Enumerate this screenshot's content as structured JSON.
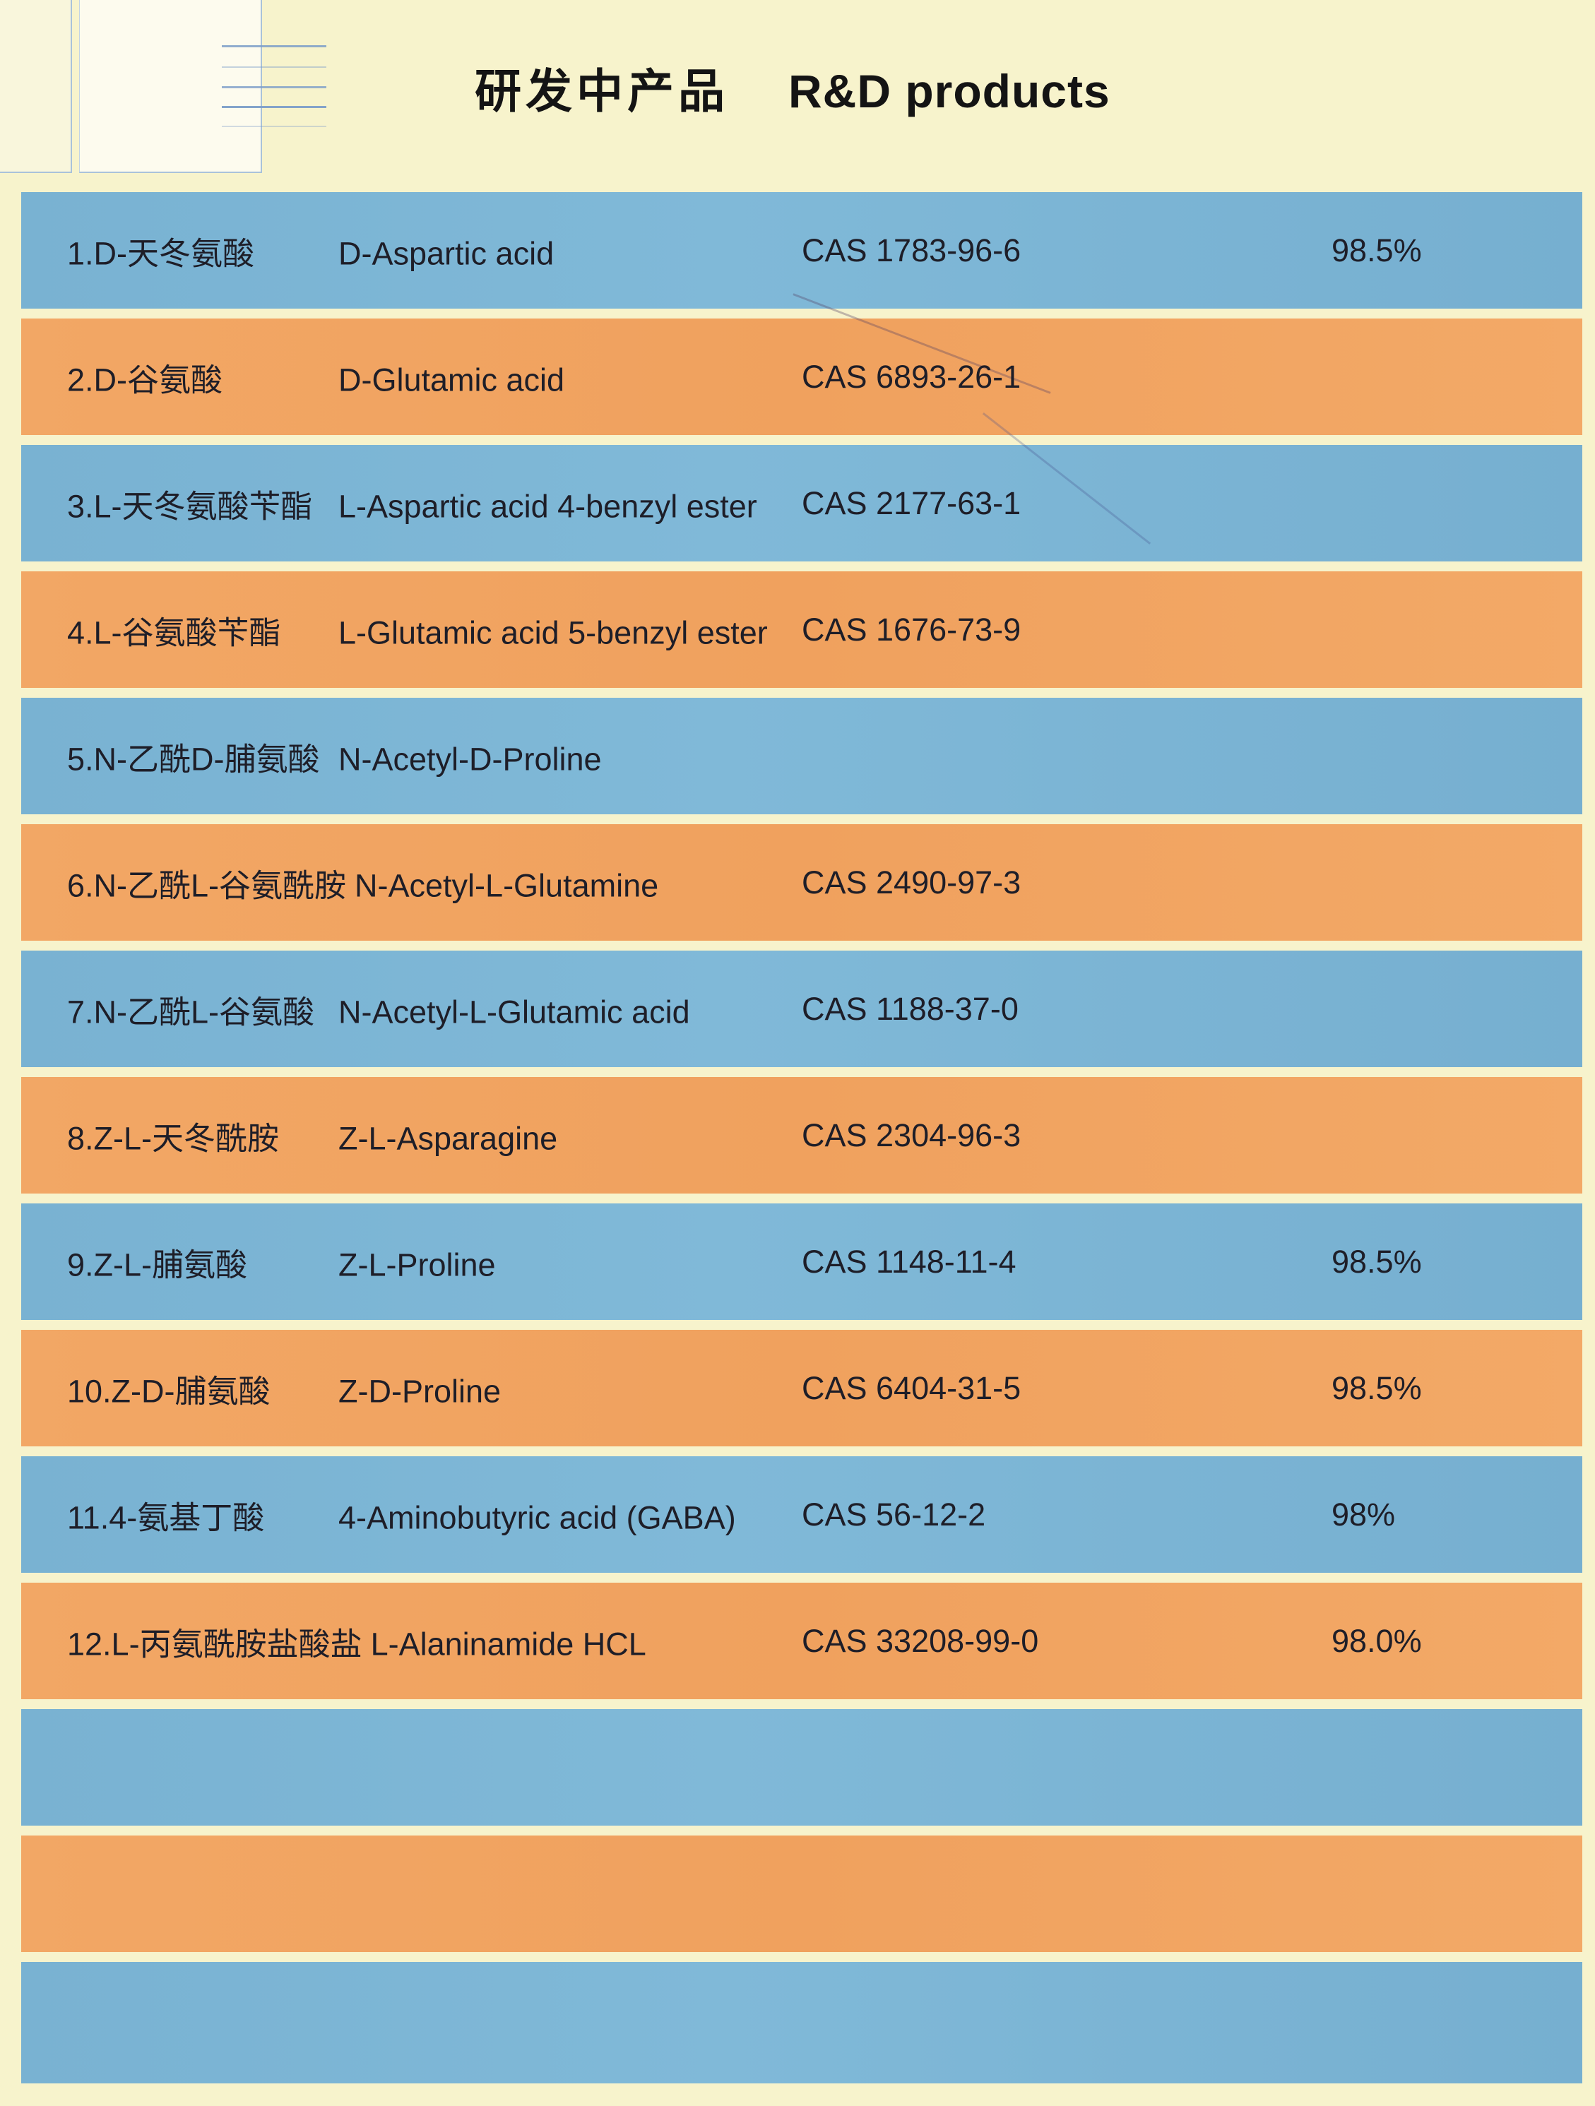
{
  "document": {
    "title_cn": "研发中产品",
    "title_en": "R&D products"
  },
  "products": [
    {
      "name_cn": "1.D-天冬氨酸",
      "name_en": "D-Aspartic acid",
      "cas": "CAS 1783-96-6",
      "purity": "98.5%"
    },
    {
      "name_cn": "2.D-谷氨酸",
      "name_en": "D-Glutamic acid",
      "cas": "CAS 6893-26-1"
    },
    {
      "name_cn": "3.L-天冬氨酸苄酯",
      "name_en": "L-Aspartic acid 4-benzyl ester",
      "cas": "CAS 2177-63-1"
    },
    {
      "name_cn": "4.L-谷氨酸苄酯",
      "name_en": "L-Glutamic acid 5-benzyl ester",
      "cas": "CAS 1676-73-9"
    },
    {
      "name_cn": "5.N-乙酰D-脯氨酸",
      "name_en": "N-Acetyl-D-Proline"
    },
    {
      "name_cn": "6.N-乙酰L-谷氨酰胺",
      "name_en": "N-Acetyl-L-Glutamine",
      "cas": "CAS 2490-97-3"
    },
    {
      "name_cn": "7.N-乙酰L-谷氨酸",
      "name_en": "N-Acetyl-L-Glutamic acid",
      "cas": "CAS 1188-37-0"
    },
    {
      "name_cn": "8.Z-L-天冬酰胺",
      "name_en": "Z-L-Asparagine",
      "cas": "CAS 2304-96-3"
    },
    {
      "name_cn": "9.Z-L-脯氨酸",
      "name_en": "Z-L-Proline",
      "cas": "CAS 1148-11-4",
      "purity": "98.5%"
    },
    {
      "name_cn": "10.Z-D-脯氨酸",
      "name_en": "Z-D-Proline",
      "cas": "CAS 6404-31-5",
      "purity": "98.5%"
    },
    {
      "name_cn": "11.4-氨基丁酸",
      "name_en": "4-Aminobutyric acid (GABA)",
      "cas": "CAS 56-12-2",
      "purity": "98%"
    },
    {
      "name_cn": "12.L-丙氨酰胺盐酸盐",
      "name_en": "L-Alaninamide HCL",
      "cas": "CAS 33208-99-0",
      "purity": "98.0%"
    }
  ],
  "colors": {
    "row_blue": "#7bb5d4",
    "row_orange": "#f2a564",
    "page_background": "#f7f3cc",
    "text": "#1e1e28"
  }
}
